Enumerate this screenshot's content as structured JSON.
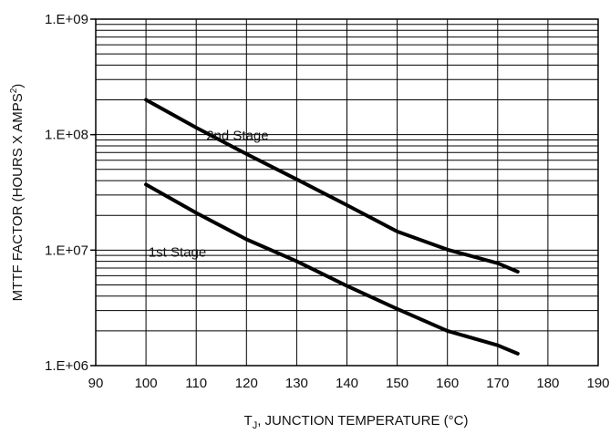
{
  "chart_data": {
    "type": "line",
    "xlabel": "T",
    "xlabel_sub": "J",
    "xlabel_rest": ", JUNCTION TEMPERATURE (°C)",
    "ylabel": "MTTF FACTOR (HOURS X AMPS",
    "ylabel_sup": "2",
    "ylabel_end": ")",
    "xlim": [
      90,
      190
    ],
    "ylim": [
      1000000,
      1000000000
    ],
    "yscale": "log",
    "grid": true,
    "x_ticks": [
      90,
      100,
      110,
      120,
      130,
      140,
      150,
      160,
      170,
      180,
      190
    ],
    "x_tick_labels": [
      "90",
      "100",
      "110",
      "120",
      "130",
      "140",
      "150",
      "160",
      "170",
      "180",
      "190"
    ],
    "y_ticks": [
      1000000,
      10000000,
      100000000,
      1000000000
    ],
    "y_tick_labels": [
      "1.E+06",
      "1.E+07",
      "1.E+08",
      "1.E+09"
    ],
    "series": [
      {
        "name": "2nd Stage",
        "x": [
          100,
          110,
          120,
          130,
          140,
          150,
          160,
          170,
          174
        ],
        "y": [
          200000000,
          115000000,
          68000000,
          41000000,
          24500000,
          14500000,
          10100000,
          7700000,
          6500000
        ]
      },
      {
        "name": "1st Stage",
        "x": [
          100,
          110,
          120,
          130,
          140,
          150,
          160,
          170,
          174
        ],
        "y": [
          37000000,
          21000000,
          12400000,
          8000000,
          4900000,
          3100000,
          2000000,
          1500000,
          1270000
        ]
      }
    ]
  }
}
